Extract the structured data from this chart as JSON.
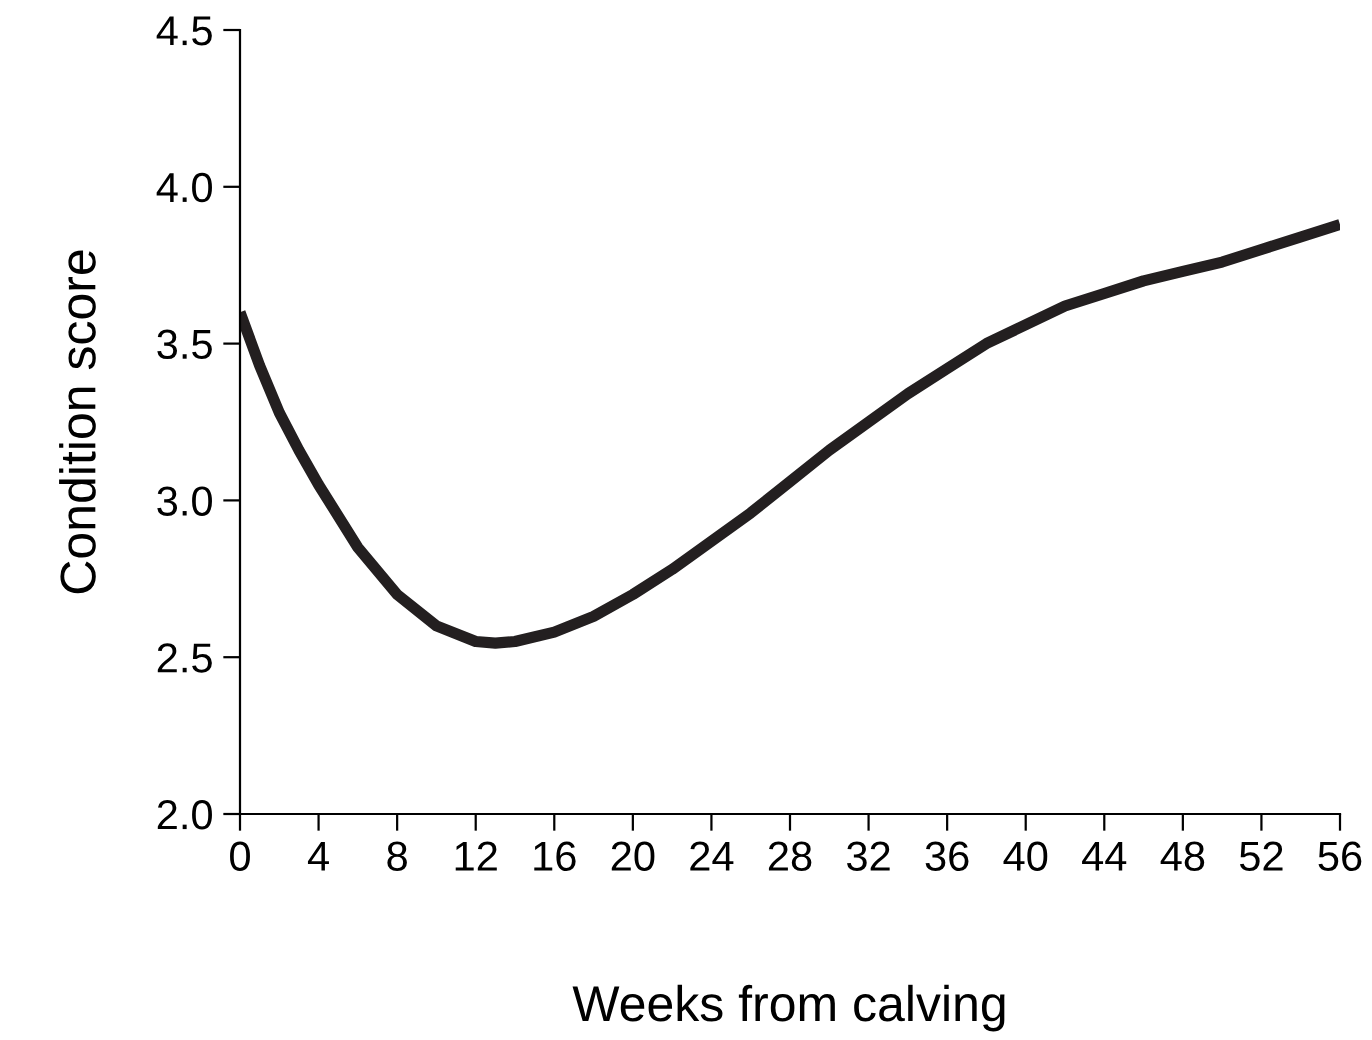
{
  "chart_data": {
    "type": "line",
    "xlabel": "Weeks from calving",
    "ylabel": "Condition score",
    "x": [
      0,
      1,
      2,
      3,
      4,
      6,
      8,
      10,
      12,
      13,
      14,
      16,
      18,
      20,
      22,
      24,
      26,
      28,
      30,
      32,
      34,
      36,
      38,
      40,
      42,
      44,
      46,
      48,
      50,
      52,
      54,
      56
    ],
    "series": [
      {
        "color": "#231f20",
        "values": [
          3.6,
          3.43,
          3.28,
          3.16,
          3.05,
          2.85,
          2.7,
          2.6,
          2.55,
          2.545,
          2.55,
          2.58,
          2.63,
          2.7,
          2.78,
          2.87,
          2.96,
          3.06,
          3.16,
          3.25,
          3.34,
          3.42,
          3.5,
          3.56,
          3.62,
          3.66,
          3.7,
          3.73,
          3.76,
          3.8,
          3.84,
          3.88
        ]
      }
    ],
    "xlim": [
      0,
      56
    ],
    "xticks": [
      0,
      4,
      8,
      12,
      16,
      20,
      24,
      28,
      32,
      36,
      40,
      44,
      48,
      52,
      56
    ],
    "ylim": [
      2.0,
      4.5
    ],
    "yticks": [
      {
        "value": 2.0,
        "label": "2.0"
      },
      {
        "value": 2.5,
        "label": "2.5"
      },
      {
        "value": 3.0,
        "label": "3.0"
      },
      {
        "value": 3.5,
        "label": "3.5"
      },
      {
        "value": 4.0,
        "label": "4.0"
      },
      {
        "value": 4.5,
        "label": "4.5"
      }
    ],
    "grid": false,
    "legend": false,
    "marker": "none",
    "line_style": "solid"
  }
}
